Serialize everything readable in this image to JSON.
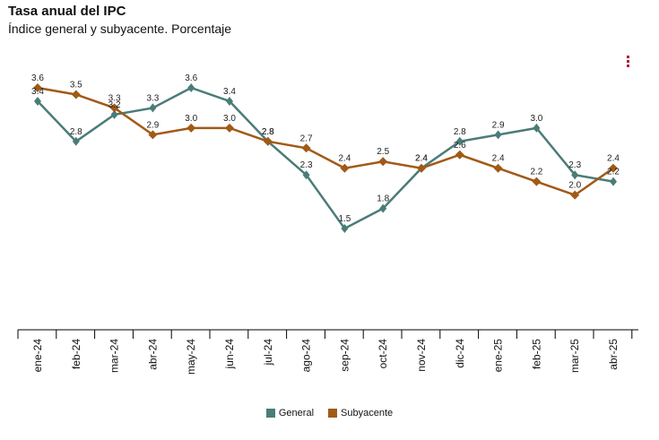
{
  "header": {
    "title": "Tasa anual del IPC",
    "subtitle": "Índice general y subyacente. Porcentaje"
  },
  "chart_data": {
    "type": "line",
    "title": "Tasa anual del IPC",
    "subtitle": "Índice general y subyacente. Porcentaje",
    "categories": [
      "ene-24",
      "feb-24",
      "mar-24",
      "abr-24",
      "may-24",
      "jun-24",
      "jul-24",
      "ago-24",
      "sep-24",
      "oct-24",
      "nov-24",
      "dic-24",
      "ene-25",
      "feb-25",
      "mar-25",
      "abr-25"
    ],
    "series": [
      {
        "name": "General",
        "color": "#4a7c78",
        "values": [
          3.4,
          2.8,
          3.2,
          3.3,
          3.6,
          3.4,
          2.8,
          2.3,
          1.5,
          1.8,
          2.4,
          2.8,
          2.9,
          3.0,
          2.3,
          2.2
        ]
      },
      {
        "name": "Subyacente",
        "color": "#a05a16",
        "values": [
          3.6,
          3.5,
          3.3,
          2.9,
          3.0,
          3.0,
          2.8,
          2.7,
          2.4,
          2.5,
          2.4,
          2.6,
          2.4,
          2.2,
          2.0,
          2.4
        ]
      }
    ],
    "ylim": [
      0,
      4
    ],
    "xlabel": "",
    "ylabel": "",
    "grid": false,
    "legend": "bottom-center"
  },
  "legend": {
    "general_label": "General",
    "subyacente_label": "Subyacente"
  }
}
